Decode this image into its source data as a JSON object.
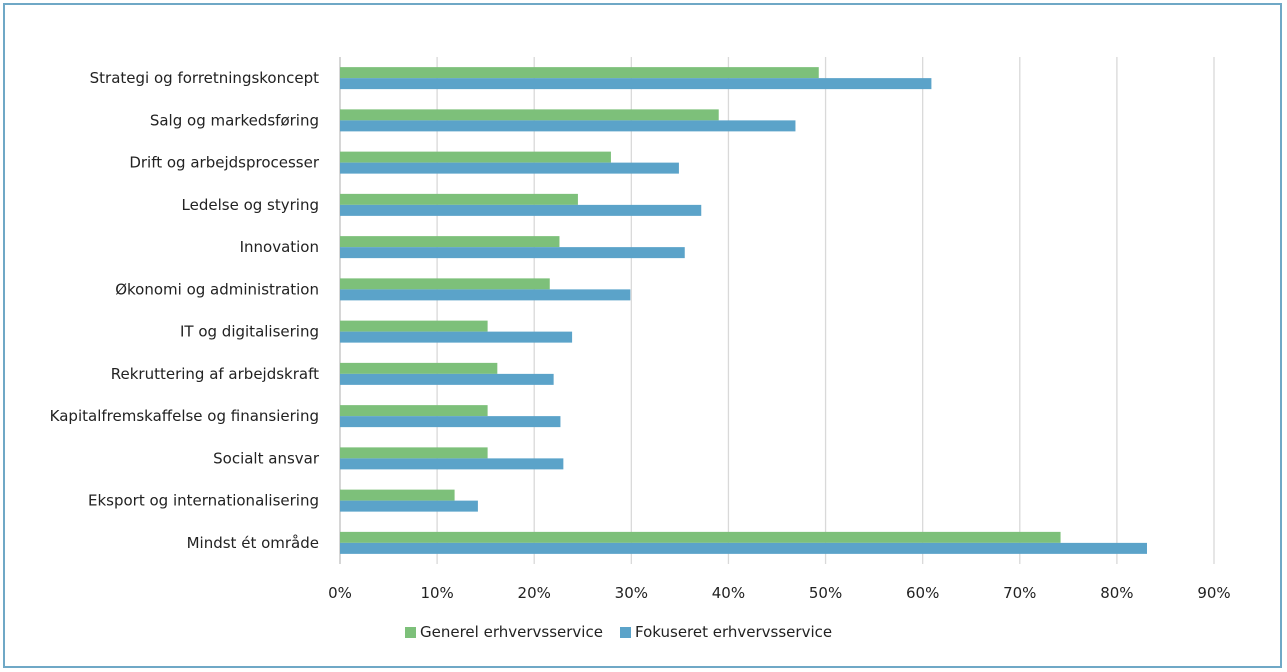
{
  "chart_data": {
    "type": "bar",
    "orientation": "horizontal",
    "categories": [
      "Strategi og forretningskoncept",
      "Salg og markedsføring",
      "Drift og arbejdsprocesser",
      "Ledelse og styring",
      "Innovation",
      "Økonomi og administration",
      "IT og digitalisering",
      "Rekruttering af arbejdskraft",
      "Kapitalfremskaffelse og finansiering",
      "Socialt ansvar",
      "Eksport og internationalisering",
      "Mindst ét område"
    ],
    "series": [
      {
        "name": "Generel erhvervsservice",
        "color": "#7dc07a",
        "values": [
          49.3,
          39.0,
          27.9,
          24.5,
          22.6,
          21.6,
          15.2,
          16.2,
          15.2,
          15.2,
          11.8,
          74.2
        ]
      },
      {
        "name": "Fokuseret erhvervsservice",
        "color": "#5ba3c9",
        "values": [
          60.9,
          46.9,
          34.9,
          37.2,
          35.5,
          29.9,
          23.9,
          22.0,
          22.7,
          23.0,
          14.2,
          83.1
        ]
      }
    ],
    "xlim": [
      0,
      90
    ],
    "xticks": [
      "0%",
      "10%",
      "20%",
      "30%",
      "40%",
      "50%",
      "60%",
      "70%",
      "80%",
      "90%"
    ],
    "grid": true,
    "legend_position": "bottom"
  }
}
